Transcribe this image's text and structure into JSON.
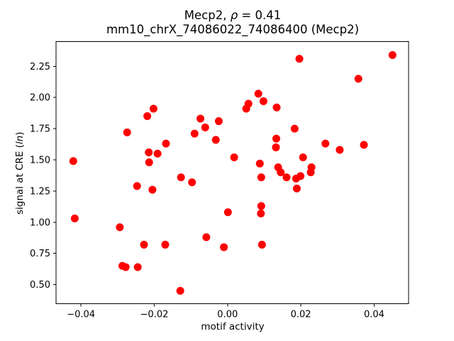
{
  "chart_data": {
    "type": "scatter",
    "title": {
      "prefix": "Mecp2, ",
      "rho": "ρ",
      "suffix": " = 0.41"
    },
    "subtitle": "mm10_chrX_74086022_74086400 (Mecp2)",
    "xlabel": "motif activity",
    "ylabel": {
      "prefix": "signal at CRE (",
      "italic": "ln",
      "suffix": ")"
    },
    "marker_color": "#ff0000",
    "axis_color": "#000000",
    "grid": "off",
    "legend": "none",
    "xlim": [
      -0.0468,
      0.0494
    ],
    "ylim": [
      0.347,
      2.448
    ],
    "xticks": [
      {
        "v": -0.04,
        "label": "−0.04"
      },
      {
        "v": -0.02,
        "label": "−0.02"
      },
      {
        "v": 0.0,
        "label": "0.00"
      },
      {
        "v": 0.02,
        "label": "0.02"
      },
      {
        "v": 0.04,
        "label": "0.04"
      }
    ],
    "yticks": [
      {
        "v": 0.5,
        "label": "0.50"
      },
      {
        "v": 0.75,
        "label": "0.75"
      },
      {
        "v": 1.0,
        "label": "1.00"
      },
      {
        "v": 1.25,
        "label": "1.25"
      },
      {
        "v": 1.5,
        "label": "1.50"
      },
      {
        "v": 1.75,
        "label": "1.75"
      },
      {
        "v": 2.0,
        "label": "2.00"
      },
      {
        "v": 2.25,
        "label": "2.25"
      }
    ],
    "points": [
      [
        -0.0202,
        1.91
      ],
      [
        -0.0219,
        1.85
      ],
      [
        -0.0274,
        1.72
      ],
      [
        -0.0074,
        1.83
      ],
      [
        -0.0061,
        1.76
      ],
      [
        -0.0024,
        1.81
      ],
      [
        -0.009,
        1.71
      ],
      [
        -0.0032,
        1.66
      ],
      [
        -0.0168,
        1.63
      ],
      [
        -0.0215,
        1.56
      ],
      [
        -0.0191,
        1.55
      ],
      [
        -0.0214,
        1.48
      ],
      [
        -0.0421,
        1.49
      ],
      [
        0.0018,
        1.52
      ],
      [
        -0.0127,
        1.36
      ],
      [
        0.0196,
        2.31
      ],
      [
        0.045,
        2.34
      ],
      [
        0.0357,
        2.15
      ],
      [
        0.0084,
        2.03
      ],
      [
        0.0057,
        1.95
      ],
      [
        0.0098,
        1.97
      ],
      [
        0.0051,
        1.91
      ],
      [
        0.0134,
        1.92
      ],
      [
        0.0183,
        1.75
      ],
      [
        0.0133,
        1.67
      ],
      [
        0.0132,
        1.6
      ],
      [
        0.0267,
        1.63
      ],
      [
        0.0306,
        1.58
      ],
      [
        0.0372,
        1.62
      ],
      [
        0.0206,
        1.52
      ],
      [
        0.0088,
        1.47
      ],
      [
        0.0138,
        1.44
      ],
      [
        0.0145,
        1.4
      ],
      [
        0.0161,
        1.36
      ],
      [
        0.0187,
        1.35
      ],
      [
        0.0199,
        1.37
      ],
      [
        0.0227,
        1.4
      ],
      [
        0.0229,
        1.44
      ],
      [
        0.0189,
        1.27
      ],
      [
        -0.0097,
        1.32
      ],
      [
        -0.0247,
        1.29
      ],
      [
        -0.0205,
        1.26
      ],
      [
        -0.0417,
        1.03
      ],
      [
        -0.0294,
        0.96
      ],
      [
        -0.0228,
        0.82
      ],
      [
        -0.017,
        0.82
      ],
      [
        -0.0058,
        0.88
      ],
      [
        0.0001,
        1.08
      ],
      [
        -0.001,
        0.8
      ],
      [
        -0.0287,
        0.65
      ],
      [
        -0.0278,
        0.64
      ],
      [
        -0.0245,
        0.64
      ],
      [
        -0.0129,
        0.45
      ],
      [
        0.0092,
        1.36
      ],
      [
        0.0092,
        1.13
      ],
      [
        0.0091,
        1.07
      ],
      [
        0.0094,
        0.82
      ]
    ]
  }
}
